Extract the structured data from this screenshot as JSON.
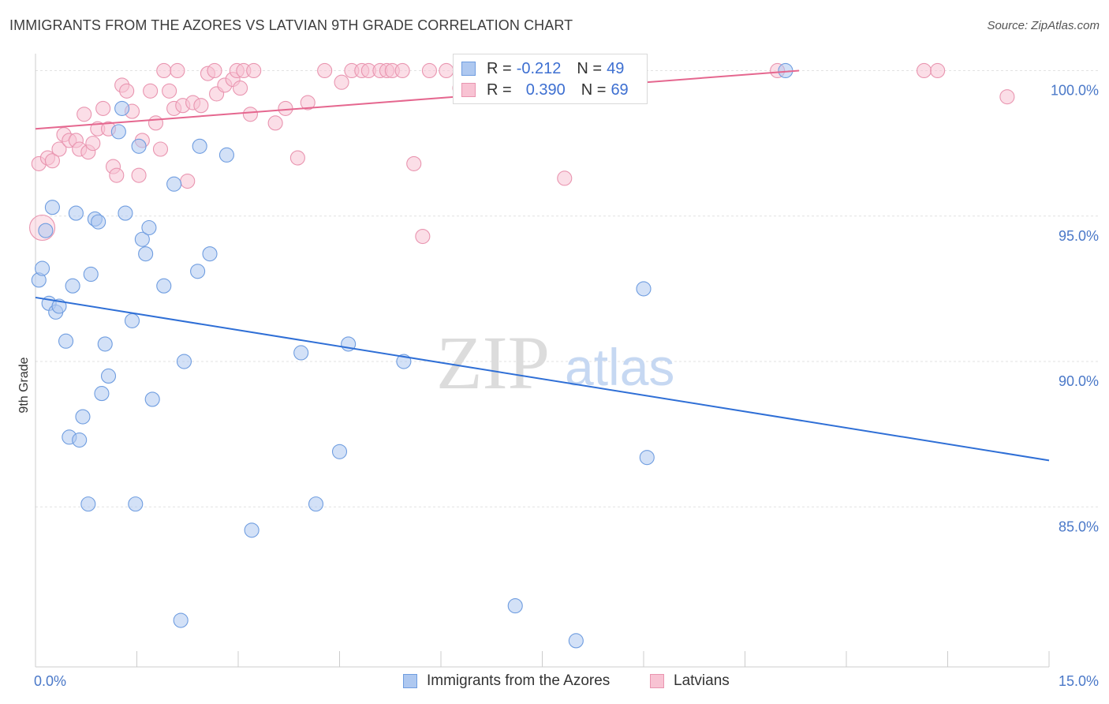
{
  "title": "IMMIGRANTS FROM THE AZORES VS LATVIAN 9TH GRADE CORRELATION CHART",
  "source": "Source: ZipAtlas.com",
  "watermark": {
    "zip": "ZIP",
    "atlas": "atlas"
  },
  "legend_top": {
    "r_label": "R =",
    "n_label": "N =",
    "series": [
      {
        "r": "-0.212",
        "n": "49"
      },
      {
        "r": "0.390",
        "n": "69"
      }
    ]
  },
  "colors": {
    "blue_fill": "#aec8f0",
    "blue_stroke": "#6f9de0",
    "blue_line": "#2f6fd6",
    "pink_fill": "#f8c3d3",
    "pink_stroke": "#e995b0",
    "pink_line": "#e5678f",
    "tick_text": "#4a78c8"
  },
  "chart_data": {
    "type": "scatter",
    "title": "IMMIGRANTS FROM THE AZORES VS LATVIAN 9TH GRADE CORRELATION CHART",
    "xlabel": "",
    "ylabel": "9th Grade",
    "xlim": [
      0,
      15
    ],
    "ylim": [
      79.5,
      100.8
    ],
    "x_tick_labels": [
      "0.0%",
      "15.0%"
    ],
    "y_ticks": [
      85,
      90,
      95,
      100
    ],
    "y_tick_labels": [
      "85.0%",
      "90.0%",
      "95.0%",
      "100.0%"
    ],
    "series": [
      {
        "name": "Immigrants from the Azores",
        "color": "blue",
        "trend": {
          "x0": 0,
          "y0": 92.2,
          "x1": 15,
          "y1": 86.6
        },
        "points": [
          [
            0.05,
            92.8
          ],
          [
            0.1,
            93.2
          ],
          [
            0.15,
            94.5
          ],
          [
            0.2,
            92.0
          ],
          [
            0.25,
            95.3
          ],
          [
            0.3,
            91.7
          ],
          [
            0.35,
            91.9
          ],
          [
            0.45,
            90.7
          ],
          [
            0.5,
            87.4
          ],
          [
            0.55,
            92.6
          ],
          [
            0.6,
            95.1
          ],
          [
            0.65,
            87.3
          ],
          [
            0.7,
            88.1
          ],
          [
            0.78,
            85.1
          ],
          [
            0.82,
            93.0
          ],
          [
            0.88,
            94.9
          ],
          [
            0.93,
            94.8
          ],
          [
            0.98,
            88.9
          ],
          [
            1.03,
            90.6
          ],
          [
            1.08,
            89.5
          ],
          [
            1.23,
            97.9
          ],
          [
            1.28,
            98.7
          ],
          [
            1.33,
            95.1
          ],
          [
            1.43,
            91.4
          ],
          [
            1.48,
            85.1
          ],
          [
            1.53,
            97.4
          ],
          [
            1.58,
            94.2
          ],
          [
            1.63,
            93.7
          ],
          [
            1.68,
            94.6
          ],
          [
            1.73,
            88.7
          ],
          [
            1.9,
            92.6
          ],
          [
            2.05,
            96.1
          ],
          [
            2.15,
            81.1
          ],
          [
            2.2,
            90.0
          ],
          [
            2.4,
            93.1
          ],
          [
            2.43,
            97.4
          ],
          [
            2.58,
            93.7
          ],
          [
            2.83,
            97.1
          ],
          [
            3.2,
            84.2
          ],
          [
            3.93,
            90.3
          ],
          [
            4.15,
            85.1
          ],
          [
            4.5,
            86.9
          ],
          [
            4.63,
            90.6
          ],
          [
            5.45,
            90.0
          ],
          [
            7.1,
            81.6
          ],
          [
            8.0,
            80.4
          ],
          [
            9.0,
            92.5
          ],
          [
            9.05,
            86.7
          ],
          [
            11.1,
            100.0
          ]
        ]
      },
      {
        "name": "Latvians",
        "color": "pink",
        "trend": {
          "x0": 0,
          "y0": 98.0,
          "x1": 11.3,
          "y1": 100.0
        },
        "points": [
          [
            0.05,
            96.8
          ],
          [
            0.18,
            97.0
          ],
          [
            0.25,
            96.9
          ],
          [
            0.35,
            97.3
          ],
          [
            0.42,
            97.8
          ],
          [
            0.5,
            97.6
          ],
          [
            0.6,
            97.6
          ],
          [
            0.65,
            97.3
          ],
          [
            0.72,
            98.5
          ],
          [
            0.78,
            97.2
          ],
          [
            0.85,
            97.5
          ],
          [
            0.92,
            98.0
          ],
          [
            1.0,
            98.7
          ],
          [
            1.08,
            98.0
          ],
          [
            1.15,
            96.7
          ],
          [
            1.2,
            96.4
          ],
          [
            1.28,
            99.5
          ],
          [
            1.35,
            99.3
          ],
          [
            1.43,
            98.6
          ],
          [
            1.53,
            96.4
          ],
          [
            1.58,
            97.6
          ],
          [
            1.7,
            99.3
          ],
          [
            1.78,
            98.2
          ],
          [
            1.85,
            97.3
          ],
          [
            1.9,
            100.0
          ],
          [
            1.98,
            99.3
          ],
          [
            2.05,
            98.7
          ],
          [
            2.1,
            100.0
          ],
          [
            2.18,
            98.8
          ],
          [
            2.25,
            96.2
          ],
          [
            2.33,
            98.9
          ],
          [
            2.45,
            98.8
          ],
          [
            2.55,
            99.9
          ],
          [
            2.65,
            100.0
          ],
          [
            2.68,
            99.2
          ],
          [
            2.8,
            99.5
          ],
          [
            2.92,
            99.7
          ],
          [
            2.98,
            100.0
          ],
          [
            3.03,
            99.4
          ],
          [
            3.08,
            100.0
          ],
          [
            3.18,
            98.5
          ],
          [
            3.23,
            100.0
          ],
          [
            3.55,
            98.2
          ],
          [
            3.7,
            98.7
          ],
          [
            3.88,
            97.0
          ],
          [
            4.03,
            98.9
          ],
          [
            4.28,
            100.0
          ],
          [
            4.53,
            99.6
          ],
          [
            4.68,
            100.0
          ],
          [
            4.83,
            100.0
          ],
          [
            4.93,
            100.0
          ],
          [
            5.1,
            100.0
          ],
          [
            5.2,
            100.0
          ],
          [
            5.28,
            100.0
          ],
          [
            5.43,
            100.0
          ],
          [
            5.6,
            96.8
          ],
          [
            5.73,
            94.3
          ],
          [
            5.83,
            100.0
          ],
          [
            6.08,
            100.0
          ],
          [
            6.28,
            99.4
          ],
          [
            6.73,
            100.0
          ],
          [
            7.5,
            100.0
          ],
          [
            7.68,
            100.0
          ],
          [
            7.83,
            96.3
          ],
          [
            10.98,
            100.0
          ],
          [
            13.15,
            100.0
          ],
          [
            13.35,
            100.0
          ],
          [
            14.38,
            99.1
          ],
          [
            0.1,
            94.6
          ]
        ]
      }
    ]
  },
  "legend_bottom": [
    "Immigrants from the Azores",
    "Latvians"
  ]
}
